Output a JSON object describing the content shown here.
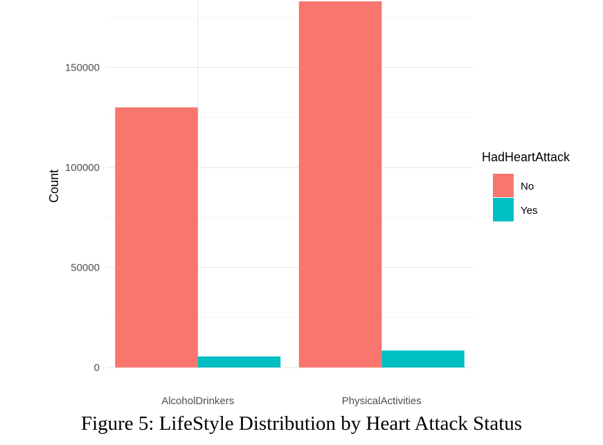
{
  "caption": "Figure 5: LifeStyle Distribution by Heart Attack Status",
  "chart_data": {
    "type": "bar",
    "title": "",
    "xlabel": "",
    "ylabel": "Count",
    "categories": [
      "AlcoholDrinkers",
      "PhysicalActivities"
    ],
    "series": [
      {
        "name": "No",
        "color": "#F8766D",
        "values": [
          130000,
          183000
        ]
      },
      {
        "name": "Yes",
        "color": "#00BFC4",
        "values": [
          5500,
          8500
        ]
      }
    ],
    "ylim": [
      0,
      183000
    ],
    "yticks": [
      0,
      50000,
      100000,
      150000
    ],
    "ytick_labels": [
      "0",
      "50000",
      "100000",
      "150000"
    ],
    "grid": true,
    "legend": {
      "title": "HadHeartAttack",
      "placement": "right"
    }
  }
}
